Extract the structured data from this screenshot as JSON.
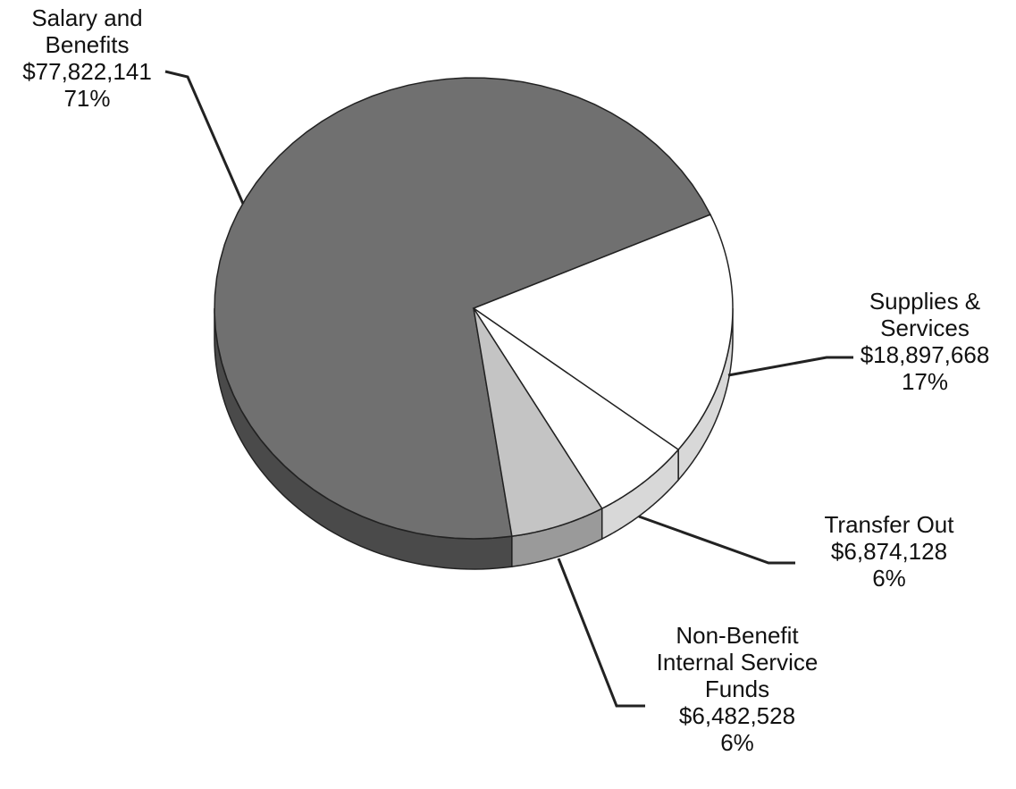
{
  "chart_data": {
    "type": "pie",
    "categories": [
      "Salary and Benefits",
      "Supplies & Services",
      "Transfer Out",
      "Non-Benefit Internal Service Funds"
    ],
    "values": [
      77822141,
      18897668,
      6874128,
      6482528
    ],
    "value_labels": [
      "$77,822,141",
      "$18,897,668",
      "$6,874,128",
      "$6,482,528"
    ],
    "percents": [
      71,
      17,
      6,
      6
    ],
    "percent_labels": [
      "71%",
      "17%",
      "6%",
      "6%"
    ],
    "colors": [
      "#707070",
      "#ffffff",
      "#ffffff",
      "#c4c4c4"
    ],
    "side_colors": [
      "#4a4a4a",
      "#d8d8d8",
      "#d8d8d8",
      "#9a9a9a"
    ]
  }
}
